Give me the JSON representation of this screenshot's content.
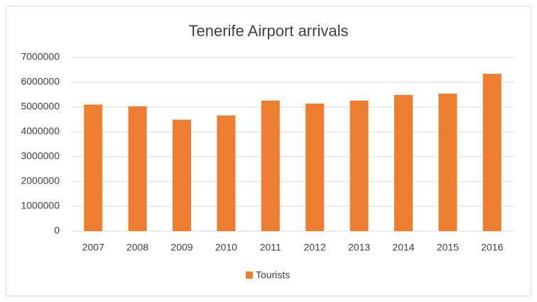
{
  "chart_data": {
    "type": "bar",
    "title": "Tenerife Airport arrivals",
    "categories": [
      "2007",
      "2008",
      "2009",
      "2010",
      "2011",
      "2012",
      "2013",
      "2014",
      "2015",
      "2016"
    ],
    "series": [
      {
        "name": "Tourists",
        "color": "#ed7d31",
        "values": [
          5100000,
          5030000,
          4490000,
          4660000,
          5260000,
          5140000,
          5260000,
          5490000,
          5540000,
          6340000
        ]
      }
    ],
    "ylim": [
      0,
      7000000
    ],
    "yticks": [
      0,
      1000000,
      2000000,
      3000000,
      4000000,
      5000000,
      6000000,
      7000000
    ],
    "grid": true,
    "legend": "bottom"
  }
}
